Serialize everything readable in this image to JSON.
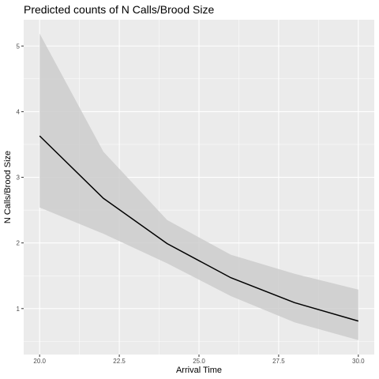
{
  "chart_data": {
    "type": "line",
    "title": "Predicted counts of N Calls/Brood Size",
    "xlabel": "Arrival Time",
    "ylabel": "N Calls/Brood Size",
    "xlim": [
      19.5,
      30.5
    ],
    "ylim": [
      0.3,
      5.4
    ],
    "x_ticks": [
      20.0,
      22.5,
      25.0,
      27.5,
      30.0
    ],
    "x_tick_labels": [
      "20.0",
      "22.5",
      "25.0",
      "27.5",
      "30.0"
    ],
    "y_ticks": [
      1,
      2,
      3,
      4,
      5
    ],
    "y_tick_labels": [
      "1",
      "2",
      "3",
      "4",
      "5"
    ],
    "grid": true,
    "panel_background": "#ebebeb",
    "grid_color": "#ffffff",
    "ribbon_color": "#cccccc",
    "line_color": "#000000",
    "series": [
      {
        "x": [
          20,
          22,
          24,
          26,
          28,
          30
        ],
        "values": [
          3.63,
          2.68,
          1.99,
          1.47,
          1.09,
          0.81
        ],
        "lower": [
          2.54,
          2.14,
          1.69,
          1.19,
          0.79,
          0.52
        ],
        "upper": [
          5.19,
          3.39,
          2.35,
          1.82,
          1.53,
          1.29
        ]
      }
    ]
  }
}
